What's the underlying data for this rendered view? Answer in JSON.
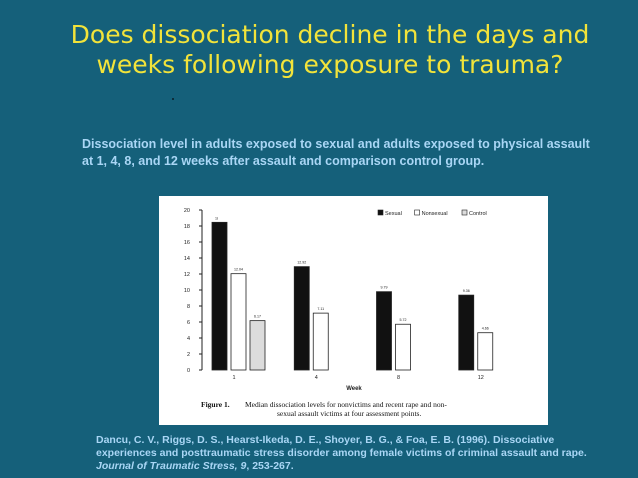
{
  "slide": {
    "title": "Does dissociation decline in the days and weeks following exposure to trauma?",
    "subtitle": "Dissociation level in adults exposed to sexual and adults exposed to physical assault at 1, 4, 8, and 12 weeks after assault and comparison control group.",
    "citation_text": "Dancu, C. V., Riggs, D. S., Hearst-Ikeda, D. E., Shoyer, B. G., & Foa, E. B. (1996). Dissociative experiences and posttraumatic stress disorder among female victims of criminal assault and rape. ",
    "citation_journal": "Journal of Traumatic Stress, 9",
    "citation_pages": ", 253-267."
  },
  "chart_data": {
    "type": "bar",
    "categories": [
      "1",
      "4",
      "8",
      "12"
    ],
    "series": [
      {
        "name": "Sexual",
        "values": [
          18.46,
          12.92,
          9.79,
          9.36
        ],
        "labels": [
          "18.46",
          "12.92",
          "9.79",
          "9.36"
        ],
        "color": "#111111"
      },
      {
        "name": "Nonsexual",
        "values": [
          12.04,
          7.11,
          5.72,
          4.66
        ],
        "labels": [
          "12.04",
          "7.11",
          "5.72",
          "4.66"
        ],
        "color": "#ffffff"
      },
      {
        "name": "Control",
        "values": [
          6.17,
          null,
          null,
          null
        ],
        "labels": [
          "6.17",
          "",
          "",
          ""
        ],
        "color": "#dcdcdc"
      }
    ],
    "xlabel": "Week",
    "ylabel": "",
    "ylim": [
      0,
      20
    ],
    "yticks": [
      "0",
      "2",
      "4",
      "6",
      "8",
      "10",
      "12",
      "14",
      "16",
      "18",
      "20"
    ],
    "legend_position": "top-right",
    "caption_label": "Figure 1.",
    "caption_line1": "Median dissociation levels for nonvictims and recent rape and non-",
    "caption_line2": "sexual assault victims at four assessment points."
  }
}
